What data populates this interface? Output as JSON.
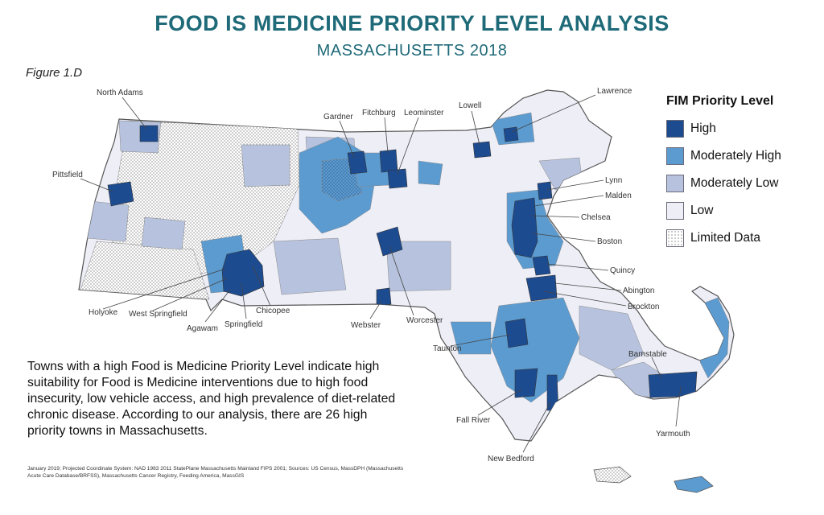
{
  "title": "FOOD IS MEDICINE PRIORITY LEVEL ANALYSIS",
  "subtitle": "MASSACHUSETTS 2018",
  "figure_label": "Figure 1.D",
  "legend": {
    "title": "FIM Priority Level",
    "items": [
      {
        "label": "High",
        "color": "#1d4b8f",
        "pattern": "solid"
      },
      {
        "label": "Moderately High",
        "color": "#5b9bd0",
        "pattern": "solid"
      },
      {
        "label": "Moderately Low",
        "color": "#b7c3de",
        "pattern": "solid"
      },
      {
        "label": "Low",
        "color": "#eeeef7",
        "pattern": "solid"
      },
      {
        "label": "Limited Data",
        "color": "#ffffff",
        "pattern": "dots"
      }
    ]
  },
  "description": "Towns with a high Food is Medicine Priority Level indicate high suitability for Food is Medicine interventions due to high food insecurity, low vehicle access, and high prevalence of diet-related chronic disease. According to our analysis, there are 26 high priority towns in Massachusetts.",
  "footnote": "January 2019; Projected Coordinate System: NAD 1983 2011 StatePlane Massachusetts Mainland FIPS 2001; Sources: US Census, MassDPH (Massachusetts Acute Care Database/BRFSS), Massachusetts Cancer Registry, Feeding America, MassGIS",
  "town_labels": {
    "north_adams": "North Adams",
    "pittsfield": "Pittsfield",
    "gardner": "Gardner",
    "fitchburg": "Fitchburg",
    "leominster": "Leominster",
    "lowell": "Lowell",
    "lawrence": "Lawrence",
    "lynn": "Lynn",
    "malden": "Malden",
    "chelsea": "Chelsea",
    "boston": "Boston",
    "quincy": "Quincy",
    "abington": "Abington",
    "brockton": "Brockton",
    "holyoke": "Holyoke",
    "west_springfield": "West Springfield",
    "agawam": "Agawam",
    "springfield": "Springfield",
    "chicopee": "Chicopee",
    "webster": "Webster",
    "worcester": "Worcester",
    "taunton": "Taunton",
    "barnstable": "Barnstable",
    "fall_river": "Fall River",
    "yarmouth": "Yarmouth",
    "new_bedford": "New Bedford"
  }
}
